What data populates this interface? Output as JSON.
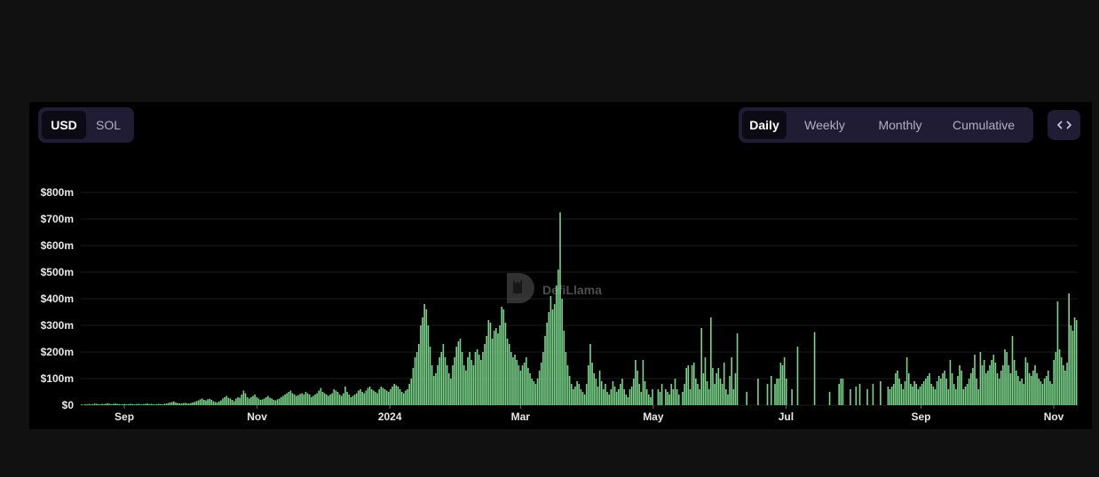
{
  "currency_toggle": {
    "options": [
      "USD",
      "SOL"
    ],
    "selected": "USD"
  },
  "period_toggle": {
    "options": [
      "Daily",
      "Weekly",
      "Monthly",
      "Cumulative"
    ],
    "selected": "Daily"
  },
  "embed_icon": "code-brackets-icon",
  "watermark": "DefiLlama",
  "colors": {
    "bar": "#7bd68c",
    "panel_bg": "#000000",
    "page_bg": "#111111",
    "toggle_bg": "#1f1c33",
    "toggle_active": "#0c0b15"
  },
  "chart_data": {
    "type": "bar",
    "x_axis_type": "date",
    "x_start": "2023-08-12",
    "x_end": "2024-11-12",
    "y_ticks": [
      "$0",
      "$100m",
      "$200m",
      "$300m",
      "$400m",
      "$500m",
      "$600m",
      "$700m",
      "$800m"
    ],
    "ylim": [
      0,
      800
    ],
    "y_unit": "USD millions",
    "x_tick_labels": [
      {
        "date": "2023-09-01",
        "label": "Sep"
      },
      {
        "date": "2023-11-01",
        "label": "Nov"
      },
      {
        "date": "2024-01-01",
        "label": "2024"
      },
      {
        "date": "2024-03-01",
        "label": "Mar"
      },
      {
        "date": "2024-05-01",
        "label": "May"
      },
      {
        "date": "2024-07-01",
        "label": "Jul"
      },
      {
        "date": "2024-09-01",
        "label": "Sep"
      },
      {
        "date": "2024-11-01",
        "label": "Nov"
      }
    ],
    "grid": true,
    "legend": "none",
    "series": [
      {
        "values": [
          3,
          2,
          4,
          3,
          5,
          3,
          4,
          6,
          5,
          4,
          3,
          5,
          4,
          6,
          7,
          5,
          4,
          5,
          6,
          5,
          4,
          3,
          4,
          5,
          3,
          4,
          5,
          4,
          3,
          4,
          5,
          4,
          3,
          4,
          5,
          6,
          4,
          5,
          4,
          3,
          4,
          5,
          4,
          3,
          5,
          6,
          8,
          10,
          12,
          14,
          10,
          8,
          7,
          6,
          8,
          9,
          7,
          6,
          8,
          10,
          12,
          15,
          18,
          22,
          25,
          20,
          18,
          22,
          24,
          20,
          15,
          12,
          10,
          14,
          18,
          25,
          30,
          35,
          28,
          25,
          20,
          15,
          25,
          30,
          28,
          40,
          55,
          45,
          30,
          25,
          30,
          35,
          40,
          30,
          25,
          20,
          22,
          25,
          30,
          35,
          28,
          25,
          20,
          18,
          22,
          25,
          30,
          35,
          40,
          45,
          50,
          55,
          45,
          40,
          35,
          38,
          42,
          45,
          40,
          50,
          45,
          40,
          30,
          35,
          40,
          45,
          55,
          65,
          50,
          45,
          40,
          35,
          40,
          45,
          60,
          55,
          50,
          40,
          35,
          45,
          70,
          50,
          40,
          30,
          35,
          40,
          45,
          55,
          60,
          50,
          45,
          55,
          65,
          70,
          60,
          55,
          50,
          45,
          60,
          70,
          65,
          60,
          55,
          50,
          60,
          70,
          80,
          75,
          70,
          60,
          50,
          45,
          55,
          60,
          80,
          100,
          140,
          180,
          200,
          230,
          300,
          330,
          380,
          360,
          300,
          220,
          150,
          110,
          120,
          150,
          180,
          200,
          230,
          180,
          150,
          120,
          100,
          150,
          180,
          220,
          240,
          250,
          200,
          150,
          130,
          180,
          200,
          170,
          150,
          200,
          210,
          190,
          170,
          200,
          230,
          260,
          320,
          310,
          250,
          280,
          290,
          270,
          300,
          370,
          360,
          310,
          250,
          230,
          200,
          180,
          190,
          170,
          150,
          130,
          150,
          160,
          180,
          140,
          120,
          100,
          90,
          80,
          100,
          130,
          160,
          200,
          260,
          310,
          350,
          410,
          360,
          380,
          450,
          510,
          725,
          400,
          280,
          200,
          150,
          110,
          80,
          60,
          70,
          90,
          80,
          60,
          50,
          40,
          80,
          150,
          230,
          160,
          120,
          100,
          70,
          130,
          90,
          60,
          80,
          50,
          40,
          60,
          90,
          70,
          50,
          60,
          80,
          100,
          60,
          40,
          30,
          60,
          70,
          100,
          170,
          130,
          80,
          50,
          170,
          90,
          60,
          40,
          30,
          60,
          0,
          0,
          60,
          50,
          80,
          0,
          60,
          50,
          40,
          80,
          60,
          100,
          60,
          40,
          0,
          50,
          80,
          140,
          150,
          60,
          150,
          160,
          100,
          80,
          60,
          290,
          120,
          180,
          90,
          60,
          330,
          140,
          80,
          120,
          140,
          100,
          80,
          160,
          60,
          40,
          110,
          180,
          60,
          120,
          270,
          0,
          0,
          0,
          0,
          50,
          0,
          0,
          0,
          0,
          0,
          100,
          0,
          0,
          0,
          0,
          80,
          0,
          110,
          0,
          80,
          100,
          100,
          160,
          150,
          180,
          100,
          0,
          0,
          60,
          0,
          0,
          220,
          0,
          0,
          0,
          0,
          0,
          0,
          0,
          0,
          275,
          0,
          0,
          0,
          0,
          0,
          0,
          0,
          50,
          0,
          0,
          0,
          0,
          80,
          100,
          100,
          0,
          0,
          0,
          60,
          0,
          0,
          70,
          0,
          80,
          0,
          0,
          0,
          60,
          0,
          0,
          80,
          0,
          0,
          0,
          90,
          0,
          0,
          0,
          70,
          60,
          70,
          80,
          120,
          130,
          100,
          80,
          60,
          90,
          180,
          120,
          80,
          70,
          90,
          80,
          60,
          70,
          80,
          90,
          100,
          110,
          120,
          80,
          70,
          60,
          90,
          110,
          100,
          120,
          130,
          100,
          60,
          170,
          120,
          80,
          60,
          110,
          150,
          130,
          60,
          70,
          80,
          100,
          120,
          140,
          190,
          100,
          60,
          200,
          150,
          170,
          120,
          130,
          150,
          170,
          190,
          160,
          120,
          100,
          130,
          150,
          210,
          200,
          150,
          120,
          260,
          170,
          130,
          110,
          90,
          100,
          80,
          180,
          160,
          120,
          110,
          130,
          150,
          120,
          100,
          90,
          80,
          100,
          110,
          130,
          90,
          80,
          170,
          200,
          390,
          210,
          180,
          150,
          130,
          160,
          420,
          300,
          280,
          330,
          320
        ]
      }
    ]
  }
}
